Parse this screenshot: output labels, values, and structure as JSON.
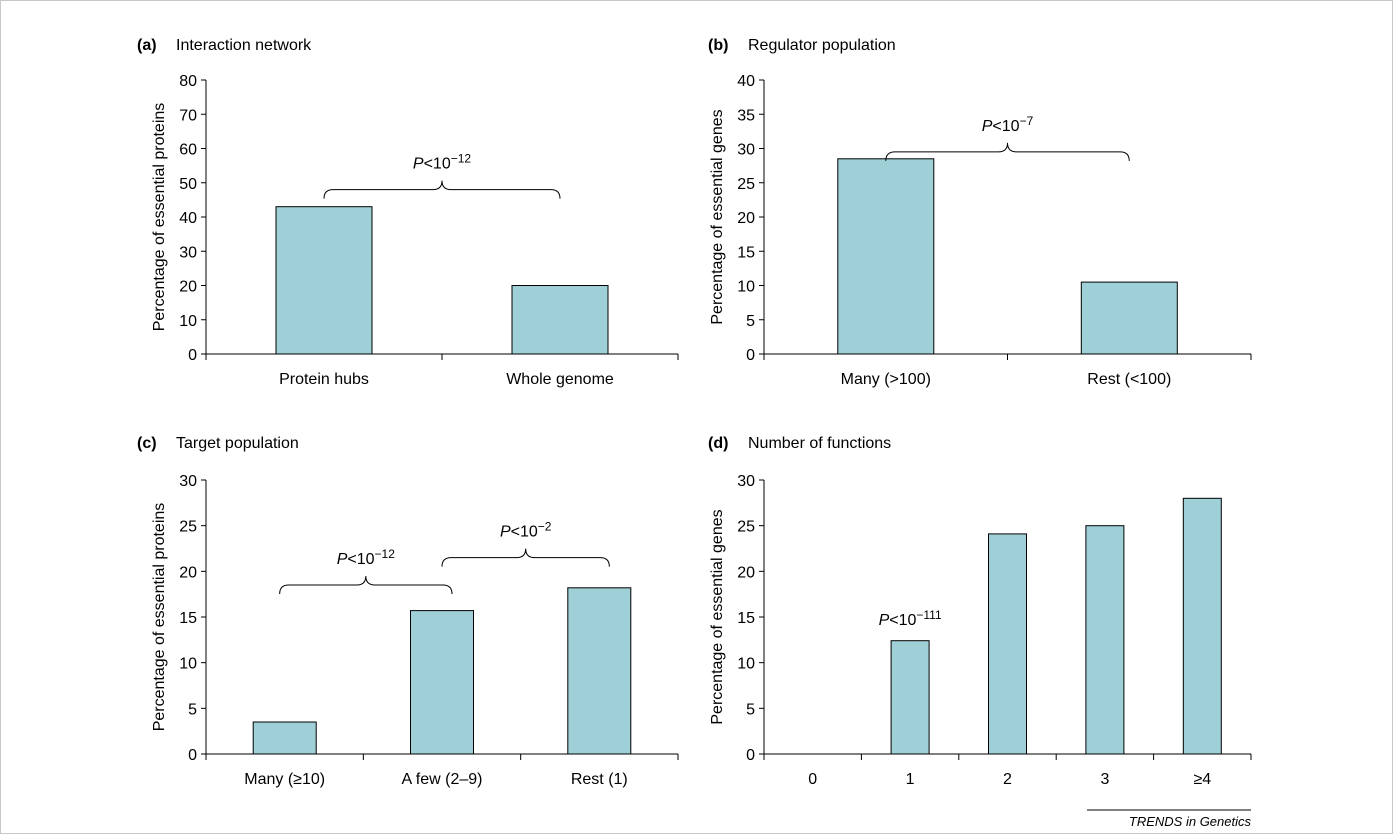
{
  "figure_credit": "TRENDS in Genetics",
  "colors": {
    "bar_fill": "#9fd0d8",
    "bar_stroke": "#000000",
    "axis": "#000000"
  },
  "chart_data": [
    {
      "type": "bar",
      "panel_letter": "(a)",
      "title": "Interaction network",
      "ylabel": "Percentage of essential proteins",
      "xlabel": "",
      "ylim": [
        0,
        80
      ],
      "yticks": [
        0,
        10,
        20,
        30,
        40,
        50,
        60,
        70,
        80
      ],
      "categories": [
        "Protein hubs",
        "Whole genome"
      ],
      "values": [
        43,
        20
      ],
      "annotations": [
        {
          "text_prefix": "P",
          "text_main": "<10",
          "text_sup": "−12",
          "between": [
            0,
            1
          ],
          "level": 48
        }
      ]
    },
    {
      "type": "bar",
      "panel_letter": "(b)",
      "title": "Regulator population",
      "ylabel": "Percentage of essential genes",
      "xlabel": "",
      "ylim": [
        0,
        40
      ],
      "yticks": [
        0,
        5,
        10,
        15,
        20,
        25,
        30,
        35,
        40
      ],
      "categories": [
        "Many (>100)",
        "Rest (<100)"
      ],
      "values": [
        28.5,
        10.5
      ],
      "annotations": [
        {
          "text_prefix": "P",
          "text_main": "<10",
          "text_sup": "−7",
          "between": [
            0,
            1
          ],
          "level": 29.5
        }
      ]
    },
    {
      "type": "bar",
      "panel_letter": "(c)",
      "title": "Target population",
      "ylabel": "Percentage of essential proteins",
      "xlabel": "",
      "ylim": [
        0,
        30
      ],
      "yticks": [
        0,
        5,
        10,
        15,
        20,
        25,
        30
      ],
      "categories": [
        "Many (≥10)",
        "A few (2–9)",
        "Rest (1)"
      ],
      "values": [
        3.5,
        15.7,
        18.2
      ],
      "annotations": [
        {
          "text_prefix": "P",
          "text_main": "<10",
          "text_sup": "−12",
          "between": [
            0,
            1
          ],
          "level": 18.5
        },
        {
          "text_prefix": "P",
          "text_main": "<10",
          "text_sup": "−2",
          "between": [
            1,
            2
          ],
          "level": 21.5
        }
      ]
    },
    {
      "type": "bar",
      "panel_letter": "(d)",
      "title": "Number of functions",
      "ylabel": "Percentage of essential genes",
      "xlabel": "",
      "ylim": [
        0,
        30
      ],
      "yticks": [
        0,
        5,
        10,
        15,
        20,
        25,
        30
      ],
      "categories": [
        "0",
        "1",
        "2",
        "3",
        "≥4"
      ],
      "values": [
        0,
        12.4,
        24.1,
        25,
        28
      ],
      "annotations": [
        {
          "text_prefix": "P",
          "text_main": "<10",
          "text_sup": "−111",
          "at": 1,
          "level": 13.7
        }
      ]
    }
  ]
}
